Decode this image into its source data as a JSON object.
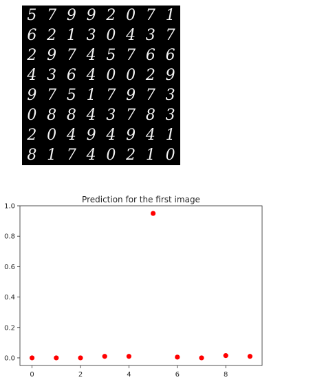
{
  "digit_grid": {
    "rows": [
      [
        "5",
        "7",
        "9",
        "9",
        "2",
        "0",
        "7",
        "1"
      ],
      [
        "6",
        "2",
        "1",
        "3",
        "0",
        "4",
        "3",
        "7"
      ],
      [
        "2",
        "9",
        "7",
        "4",
        "5",
        "7",
        "6",
        "6"
      ],
      [
        "4",
        "3",
        "6",
        "4",
        "0",
        "0",
        "2",
        "9"
      ],
      [
        "9",
        "7",
        "5",
        "1",
        "7",
        "9",
        "7",
        "3"
      ],
      [
        "0",
        "8",
        "8",
        "4",
        "3",
        "7",
        "8",
        "3"
      ],
      [
        "2",
        "0",
        "4",
        "9",
        "4",
        "9",
        "4",
        "1"
      ],
      [
        "8",
        "1",
        "7",
        "4",
        "0",
        "2",
        "1",
        "0"
      ]
    ]
  },
  "chart_data": {
    "type": "scatter",
    "title": "Prediction for the first image",
    "xlabel": "",
    "ylabel": "",
    "x": [
      0,
      1,
      2,
      3,
      4,
      5,
      6,
      7,
      8,
      9
    ],
    "y": [
      0.0,
      0.0,
      0.0,
      0.01,
      0.01,
      0.95,
      0.005,
      0.0,
      0.015,
      0.01
    ],
    "xlim": [
      -0.5,
      9.5
    ],
    "ylim": [
      -0.05,
      1.0
    ],
    "xticks": [
      0,
      2,
      4,
      6,
      8
    ],
    "yticks": [
      0.0,
      0.2,
      0.4,
      0.6,
      0.8,
      1.0
    ],
    "xtick_labels": [
      "0",
      "2",
      "4",
      "6",
      "8"
    ],
    "ytick_labels": [
      "0.0",
      "0.2",
      "0.4",
      "0.6",
      "0.8",
      "1.0"
    ],
    "marker_color": "#ff0000",
    "grid": false
  }
}
